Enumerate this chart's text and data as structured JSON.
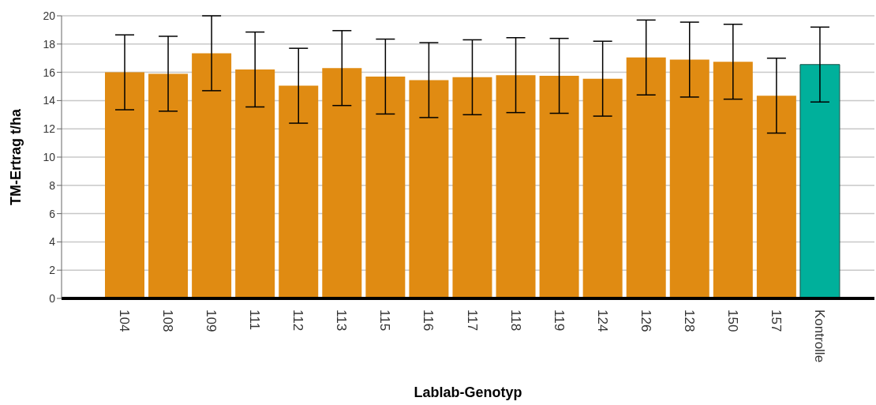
{
  "chart_data": {
    "type": "bar",
    "xlabel": "Lablab-Genotyp",
    "ylabel": "TM-Ertrag t/ha",
    "categories": [
      "104",
      "108",
      "109",
      "111",
      "112",
      "113",
      "115",
      "116",
      "117",
      "118",
      "119",
      "124",
      "126",
      "128",
      "150",
      "157",
      "Kontrolle"
    ],
    "values": [
      16.0,
      15.9,
      17.35,
      16.2,
      15.05,
      16.3,
      15.7,
      15.45,
      15.65,
      15.8,
      15.75,
      15.55,
      17.05,
      16.9,
      16.75,
      14.35,
      16.55
    ],
    "errors": [
      2.65,
      2.65,
      2.65,
      2.65,
      2.65,
      2.65,
      2.65,
      2.65,
      2.65,
      2.65,
      2.65,
      2.65,
      2.65,
      2.65,
      2.65,
      2.65,
      2.65
    ],
    "colors": [
      "#e08b12",
      "#e08b12",
      "#e08b12",
      "#e08b12",
      "#e08b12",
      "#e08b12",
      "#e08b12",
      "#e08b12",
      "#e08b12",
      "#e08b12",
      "#e08b12",
      "#e08b12",
      "#e08b12",
      "#e08b12",
      "#e08b12",
      "#e08b12",
      "#00b09b"
    ],
    "ylim": [
      0,
      20
    ],
    "yticks": [
      0,
      2,
      4,
      6,
      8,
      10,
      12,
      14,
      16,
      18,
      20
    ],
    "grid": "y"
  }
}
